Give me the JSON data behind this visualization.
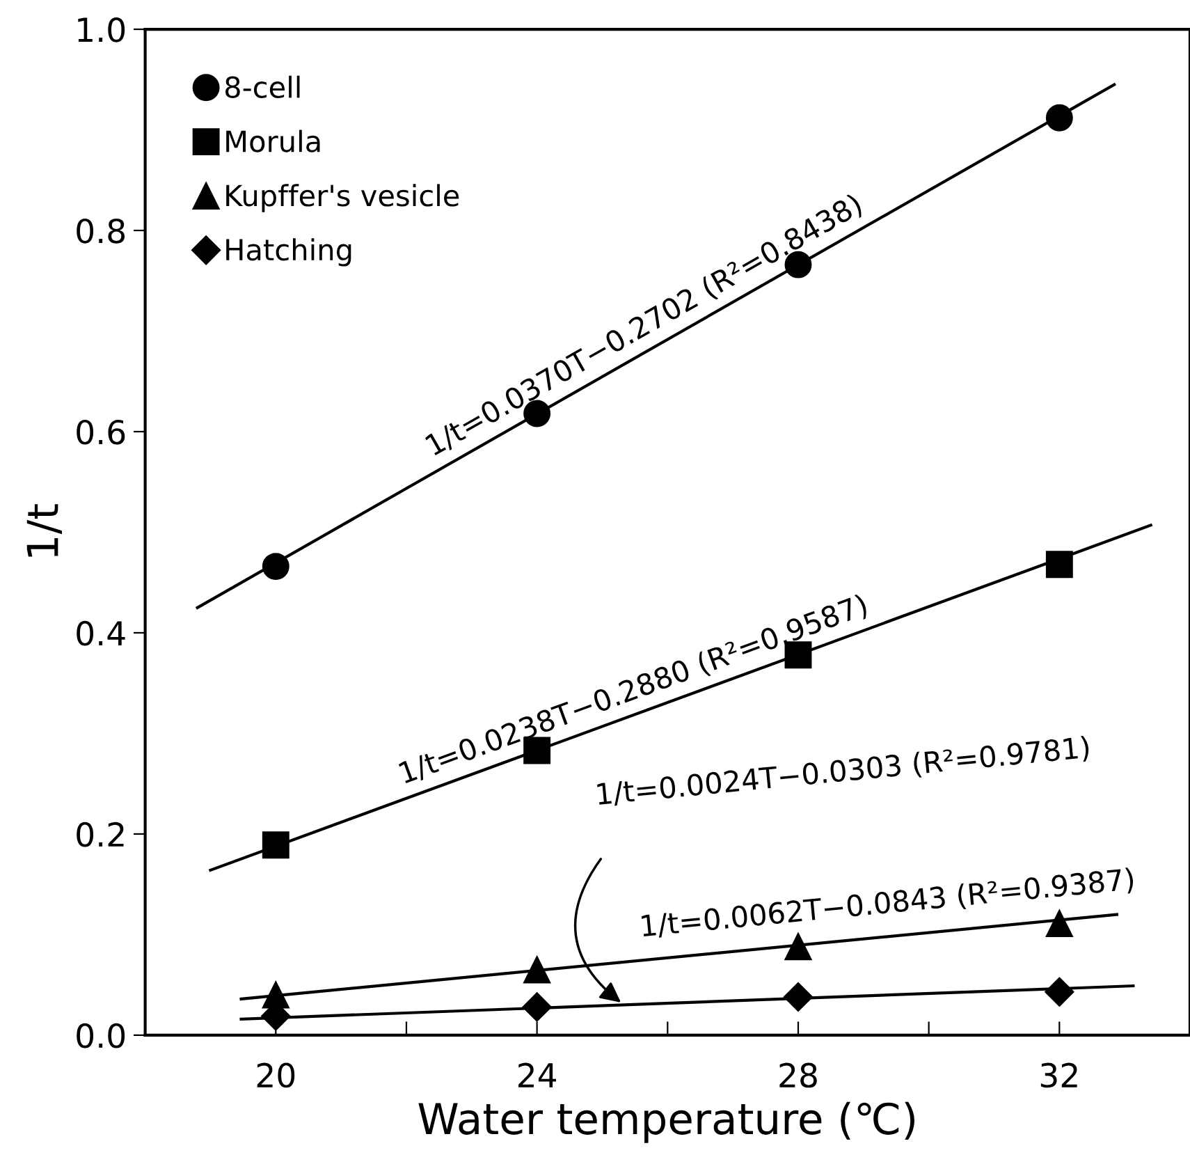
{
  "chart_data": {
    "type": "scatter",
    "xlabel": "Water temperature (℃)",
    "ylabel": "1/t",
    "x": [
      20,
      24,
      28,
      32
    ],
    "series": [
      {
        "name": "8-cell",
        "color": "#000000",
        "marker": "circle",
        "values": [
          0.466,
          0.618,
          0.766,
          0.912
        ]
      },
      {
        "name": "Morula",
        "color": "#000000",
        "marker": "square",
        "values": [
          0.189,
          0.283,
          0.378,
          0.468
        ]
      },
      {
        "name": "Kupffer's vesicle",
        "color": "#000000",
        "marker": "triangle",
        "values": [
          0.04,
          0.065,
          0.088,
          0.111
        ]
      },
      {
        "name": "Hatching",
        "color": "#000000",
        "marker": "diamond",
        "values": [
          0.019,
          0.028,
          0.038,
          0.043
        ]
      },
      {
        "type": "line",
        "color": "#000000",
        "x": [
          18.8,
          32.84
        ],
        "values": [
          0.425,
          0.945
        ]
      },
      {
        "type": "line",
        "color": "#000000",
        "x": [
          19.0,
          33.4
        ],
        "values": [
          0.164,
          0.507
        ]
      },
      {
        "type": "line",
        "color": "#000000",
        "x": [
          19.47,
          32.88
        ],
        "values": [
          0.036,
          0.12
        ]
      },
      {
        "type": "line",
        "color": "#000000",
        "x": [
          19.47,
          33.13
        ],
        "values": [
          0.016,
          0.049
        ]
      }
    ],
    "annotations": [
      "1/t=0.0370T−0.2702 (R²=0.8438)",
      "1/t=0.0238T−0.2880 (R²=0.9587)",
      "1/t=0.0024T−0.0303 (R²=0.9781)",
      "1/t=0.0062T−0.0843 (R²=0.9387)"
    ],
    "xlim": [
      18,
      34
    ],
    "xticks": [
      20,
      {
        "value": 22,
        "label": null
      },
      24,
      {
        "value": 26,
        "label": null
      },
      28,
      {
        "value": 30,
        "label": null
      },
      32
    ],
    "ylim": [
      0,
      1
    ],
    "yticks": [
      {
        "value": 0,
        "label": "0.0"
      },
      0.2,
      0.4,
      0.6,
      0.8,
      {
        "value": 1,
        "label": "1.0"
      }
    ],
    "grid": false,
    "legend": "top left"
  }
}
